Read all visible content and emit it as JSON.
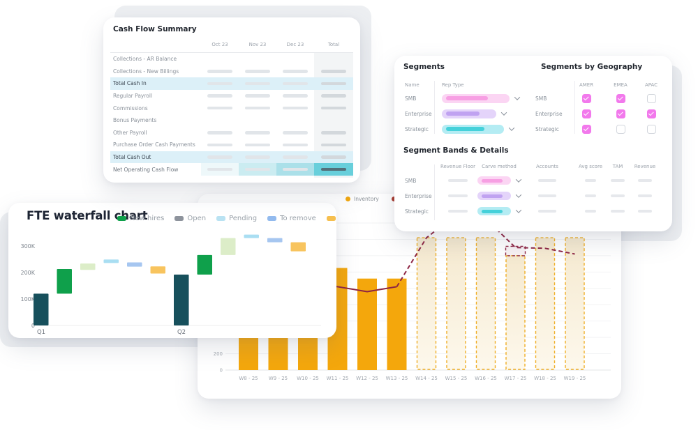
{
  "cash_flow": {
    "title": "Cash Flow Summary",
    "columns": [
      "Oct 23",
      "Nov 23",
      "Dec 23",
      "Total"
    ],
    "rows": [
      {
        "label": "Collections - AR Balance",
        "values": false,
        "highlight": false,
        "net": false
      },
      {
        "label": "Collections - New Billings",
        "values": true,
        "highlight": false,
        "net": false
      },
      {
        "label": "Total Cash In",
        "values": true,
        "highlight": true,
        "net": false
      },
      {
        "label": "Regular Payroll",
        "values": true,
        "highlight": false,
        "net": false
      },
      {
        "label": "Commissions",
        "values": true,
        "highlight": false,
        "net": false
      },
      {
        "label": "Bonus Payments",
        "values": false,
        "highlight": false,
        "net": false
      },
      {
        "label": "Other Payroll",
        "values": true,
        "highlight": false,
        "net": false
      },
      {
        "label": "Purchase Order Cash Payments",
        "values": true,
        "highlight": false,
        "net": false
      },
      {
        "label": "Total Cash Out",
        "values": true,
        "highlight": true,
        "net": false
      },
      {
        "label": "Net Operating Cash Flow",
        "values": true,
        "highlight": false,
        "net": true
      }
    ],
    "colors": {
      "highlight": "#dcf0f8",
      "net_cells": [
        "#eef8fa",
        "#cbecf1",
        "#abe0e9",
        "#68cfdb"
      ],
      "pill": "#e1e5e9",
      "pill_total": "#d3d8dc",
      "pill_net_total": "#53707a",
      "total_band": "#f3f5f6"
    }
  },
  "segments": {
    "title": "Segments",
    "columns": [
      "Name",
      "Rep Type"
    ],
    "rows": [
      {
        "name": "SMB",
        "color": "pink",
        "pill_width": 97
      },
      {
        "name": "Enterprise",
        "color": "purple",
        "pill_width": 78
      },
      {
        "name": "Strategic",
        "color": "cyan",
        "pill_width": 89
      }
    ]
  },
  "geography": {
    "title": "Segments by Geography",
    "columns": [
      "AMER",
      "EMEA",
      "APAC"
    ],
    "rows": [
      {
        "name": "SMB",
        "checks": [
          true,
          true,
          false
        ]
      },
      {
        "name": "Enterprise",
        "checks": [
          true,
          true,
          true
        ]
      },
      {
        "name": "Strategic",
        "checks": [
          true,
          false,
          false
        ]
      }
    ],
    "checkbox_color": "#f279ec"
  },
  "bands": {
    "title": "Segment Bands & Details",
    "columns": [
      "Revenue Floor",
      "Carve method",
      "Accounts",
      "Avg score",
      "TAM",
      "Revenue"
    ],
    "rows": [
      {
        "name": "SMB",
        "color": "pink"
      },
      {
        "name": "Enterprise",
        "color": "purple"
      },
      {
        "name": "Strategic",
        "color": "cyan"
      }
    ],
    "placeholder_widths": [
      28,
      26,
      16,
      20,
      20
    ]
  },
  "pill_palette": {
    "pink": {
      "outer": "#fbd5f3",
      "inner": "#f79fe3"
    },
    "purple": {
      "outer": "#e4d4fa",
      "inner": "#c0a2f1"
    },
    "cyan": {
      "outer": "#b4ecf3",
      "inner": "#45d1da"
    }
  },
  "chart_data": [
    {
      "type": "waterfall",
      "title": "FTE waterfall chart",
      "legend": [
        {
          "label": "New hires",
          "color": "#0fa04b"
        },
        {
          "label": "Open",
          "color": "#8d939c"
        },
        {
          "label": "Pending",
          "color": "#b9e2f2"
        },
        {
          "label": "To remove",
          "color": "#92baee"
        },
        {
          "label": "",
          "color": "#f6bf4f"
        }
      ],
      "unit": "K",
      "yticks": [
        [
          300,
          "300K"
        ],
        [
          200,
          "200K"
        ],
        [
          100,
          "100K"
        ],
        [
          0,
          "0"
        ]
      ],
      "categories": [
        "Q1",
        "Q2"
      ],
      "bars": [
        {
          "group": "Q1",
          "color": "#17505c",
          "from": 0,
          "to": 120
        },
        {
          "group": "Q1",
          "color": "#0fa04b",
          "from": 120,
          "to": 213
        },
        {
          "group": "Q1",
          "color": "#dcedc8",
          "from": 210,
          "to": 234
        },
        {
          "group": "Q1",
          "color": "#a9def2",
          "from": 236,
          "to": 249
        },
        {
          "group": "Q1",
          "color": "#a6c6f0",
          "from": 222,
          "to": 238
        },
        {
          "group": "Q1",
          "color": "#f8c45e",
          "from": 196,
          "to": 223
        },
        {
          "group": "Q2",
          "color": "#17505c",
          "from": 0,
          "to": 192
        },
        {
          "group": "Q2",
          "color": "#0fa04b",
          "from": 192,
          "to": 266
        },
        {
          "group": "Q2",
          "color": "#dcedc8",
          "from": 266,
          "to": 330
        },
        {
          "group": "Q2",
          "color": "#a9def2",
          "from": 330,
          "to": 343
        },
        {
          "group": "Q2",
          "color": "#a6c6f0",
          "from": 314,
          "to": 330
        },
        {
          "group": "Q2",
          "color": "#f8c45e",
          "from": 280,
          "to": 314
        }
      ]
    },
    {
      "type": "bar+line",
      "legend": [
        {
          "label": "Inventory",
          "color": "#f3a70c"
        },
        {
          "label": "V",
          "color": "#a8372a"
        }
      ],
      "categories": [
        "W8 - 25",
        "W9 - 25",
        "W10 - 25",
        "W11 - 25",
        "W12 - 25",
        "W13 - 25",
        "W14 - 25",
        "W15 - 25",
        "W16 - 25",
        "W17 - 25",
        "W18 - 25",
        "W19 - 25"
      ],
      "bar_values": [
        1250,
        1250,
        1250,
        1250,
        1120,
        1120,
        1620,
        1620,
        1620,
        1400,
        1620,
        1620
      ],
      "forecast_from_index": 6,
      "adjustment": {
        "category": "W17 - 25",
        "from": 1400,
        "to": 1515
      },
      "line_values": [
        1100,
        1000,
        1050,
        1020,
        960,
        1020,
        1620,
        1900,
        1850,
        1500,
        1490,
        1420
      ],
      "line_solid_until_index": 5,
      "ylim": [
        0,
        1800
      ],
      "yticks": [
        [
          200,
          "200"
        ],
        [
          0,
          "0"
        ]
      ],
      "colors": {
        "bar": "#f4a70c",
        "forecast_border": "#efae25",
        "forecast_fill_top": "#f5e9cf",
        "forecast_fill_bottom": "#fdf8ec",
        "line": "#8e2443",
        "adjustment_fill": "rgba(142,36,67,0.06)"
      }
    }
  ]
}
